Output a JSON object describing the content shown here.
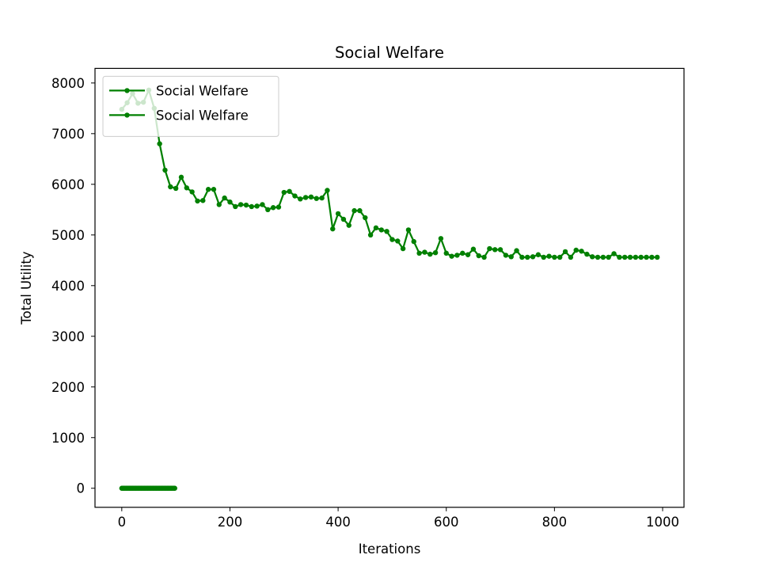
{
  "chart_data": {
    "type": "line",
    "title": "Social Welfare",
    "xlabel": "Iterations",
    "ylabel": "Total Utility",
    "xlim": [
      -49.5,
      1039.5
    ],
    "ylim": [
      -376,
      8288
    ],
    "xticks": [
      0,
      200,
      400,
      600,
      800,
      1000
    ],
    "yticks": [
      0,
      1000,
      2000,
      3000,
      4000,
      5000,
      6000,
      7000,
      8000
    ],
    "grid": false,
    "legend_position": "upper left",
    "series": [
      {
        "name": "Social Welfare",
        "color": "#008000",
        "marker": "circle",
        "x": [
          0,
          10,
          20,
          30,
          40,
          50,
          60,
          70,
          80,
          90,
          100,
          110,
          120,
          130,
          140,
          150,
          160,
          170,
          180,
          190,
          200,
          210,
          220,
          230,
          240,
          250,
          260,
          270,
          280,
          290,
          300,
          310,
          320,
          330,
          340,
          350,
          360,
          370,
          380,
          390,
          400,
          410,
          420,
          430,
          440,
          450,
          460,
          470,
          480,
          490,
          500,
          510,
          520,
          530,
          540,
          550,
          560,
          570,
          580,
          590,
          600,
          610,
          620,
          630,
          640,
          650,
          660,
          670,
          680,
          690,
          700,
          710,
          720,
          730,
          740,
          750,
          760,
          770,
          780,
          790,
          800,
          810,
          820,
          830,
          840,
          850,
          860,
          870,
          880,
          890,
          900,
          910,
          920,
          930,
          940,
          950,
          960,
          970,
          980,
          990
        ],
        "y": [
          7480,
          7610,
          7790,
          7600,
          7620,
          7860,
          7500,
          6800,
          6280,
          5950,
          5920,
          6140,
          5930,
          5850,
          5670,
          5680,
          5900,
          5900,
          5600,
          5730,
          5650,
          5560,
          5600,
          5590,
          5560,
          5570,
          5600,
          5500,
          5540,
          5550,
          5840,
          5860,
          5770,
          5710,
          5740,
          5750,
          5720,
          5730,
          5880,
          5120,
          5420,
          5310,
          5190,
          5480,
          5480,
          5340,
          5000,
          5140,
          5100,
          5070,
          4910,
          4880,
          4730,
          5100,
          4870,
          4640,
          4660,
          4620,
          4650,
          4930,
          4640,
          4580,
          4600,
          4640,
          4610,
          4720,
          4590,
          4560,
          4730,
          4710,
          4710,
          4600,
          4570,
          4690,
          4560,
          4560,
          4570,
          4610,
          4560,
          4580,
          4560,
          4560,
          4670,
          4560,
          4700,
          4680,
          4620,
          4570,
          4560,
          4560,
          4560,
          4630,
          4560,
          4560,
          4560,
          4560,
          4560,
          4560,
          4560,
          4560
        ]
      },
      {
        "name": "Social Welfare",
        "color": "#008000",
        "marker": "circle",
        "x": [
          0,
          2,
          4,
          6,
          8,
          10,
          12,
          14,
          16,
          18,
          20,
          22,
          24,
          26,
          28,
          30,
          32,
          34,
          36,
          38,
          40,
          42,
          44,
          46,
          48,
          50,
          52,
          54,
          56,
          58,
          60,
          62,
          64,
          66,
          68,
          70,
          72,
          74,
          76,
          78,
          80,
          82,
          84,
          86,
          88,
          90,
          92,
          94,
          96,
          98
        ],
        "y": [
          0,
          0,
          0,
          0,
          0,
          0,
          0,
          0,
          0,
          0,
          0,
          0,
          0,
          0,
          0,
          0,
          0,
          0,
          0,
          0,
          0,
          0,
          0,
          0,
          0,
          0,
          0,
          0,
          0,
          0,
          0,
          0,
          0,
          0,
          0,
          0,
          0,
          0,
          0,
          0,
          0,
          0,
          0,
          0,
          0,
          0,
          0,
          0,
          0,
          0
        ]
      }
    ]
  }
}
